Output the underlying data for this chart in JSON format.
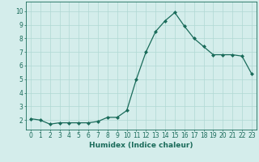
{
  "x": [
    0,
    1,
    2,
    3,
    4,
    5,
    6,
    7,
    8,
    9,
    10,
    11,
    12,
    13,
    14,
    15,
    16,
    17,
    18,
    19,
    20,
    21,
    22,
    23
  ],
  "y": [
    2.1,
    2.0,
    1.7,
    1.8,
    1.8,
    1.8,
    1.8,
    1.9,
    2.2,
    2.2,
    2.7,
    5.0,
    7.0,
    8.5,
    9.3,
    9.9,
    8.9,
    8.0,
    7.4,
    6.8,
    6.8,
    6.8,
    6.7,
    5.4
  ],
  "xlabel": "Humidex (Indice chaleur)",
  "xlim": [
    -0.5,
    23.5
  ],
  "ylim": [
    1.3,
    10.7
  ],
  "yticks": [
    2,
    3,
    4,
    5,
    6,
    7,
    8,
    9,
    10
  ],
  "xticks": [
    0,
    1,
    2,
    3,
    4,
    5,
    6,
    7,
    8,
    9,
    10,
    11,
    12,
    13,
    14,
    15,
    16,
    17,
    18,
    19,
    20,
    21,
    22,
    23
  ],
  "line_color": "#1a6b5a",
  "marker_color": "#1a6b5a",
  "bg_color": "#d4edeb",
  "grid_color": "#b0d8d4",
  "tick_label_color": "#1a6b5a",
  "xlabel_color": "#1a6b5a",
  "tick_fontsize": 5.5,
  "xlabel_fontsize": 6.5
}
